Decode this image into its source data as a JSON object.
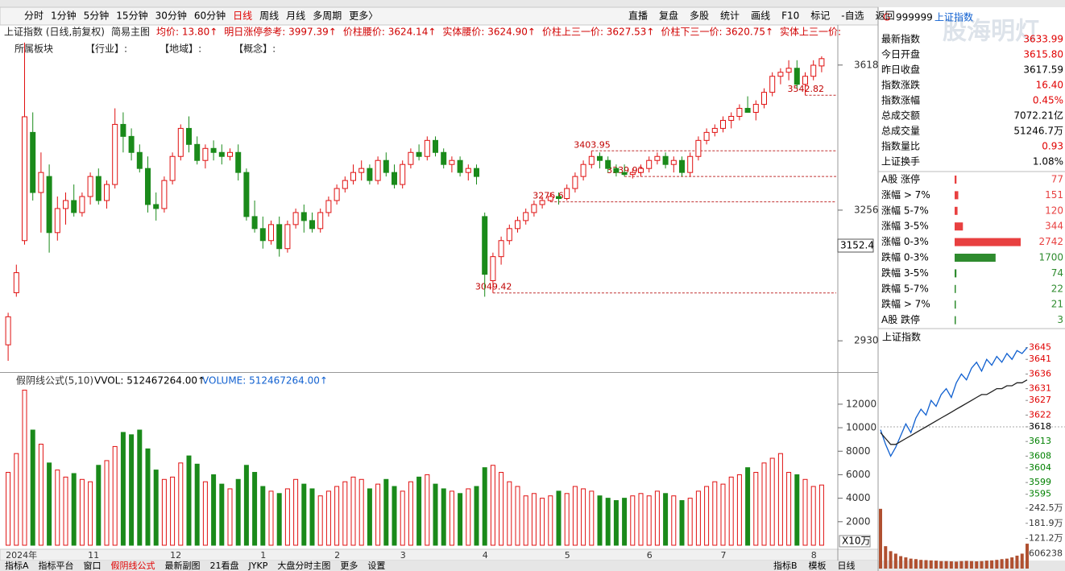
{
  "toolbar": {
    "periods": [
      "分时",
      "1分钟",
      "5分钟",
      "15分钟",
      "30分钟",
      "60分钟",
      "日线",
      "周线",
      "月线",
      "多周期",
      "更多〉"
    ],
    "active": "日线",
    "tools": [
      "直播",
      "复盘",
      "多股",
      "统计",
      "画线",
      "F10",
      "标记",
      "-自选",
      "返回"
    ]
  },
  "info_line": [
    "上证指数 (日线,前复权)",
    "简易主图",
    "均价: 13.80↑",
    "明日涨停参考: 3997.39↑",
    "价柱腰价: 3624.14↑",
    "实体腰价: 3624.90↑",
    "价柱上三一价: 3627.53↑",
    "价柱下三一价: 3620.75↑",
    "实体上三一价:"
  ],
  "sector_line": [
    "所属板块",
    "【行业】:",
    "【地域】:",
    "【概念】:"
  ],
  "main_chart": {
    "type": "candlestick",
    "up_color": "#e01010",
    "down_color": "#1a8a1a",
    "categories": [
      "2024年",
      null,
      null,
      null,
      null,
      null,
      null,
      null,
      null,
      null,
      "11",
      null,
      null,
      null,
      null,
      null,
      null,
      null,
      null,
      null,
      "12",
      null,
      null,
      null,
      null,
      null,
      null,
      null,
      null,
      null,
      null,
      "1",
      null,
      null,
      null,
      null,
      null,
      null,
      null,
      null,
      "2",
      null,
      null,
      null,
      null,
      null,
      null,
      null,
      "3",
      null,
      null,
      null,
      null,
      null,
      null,
      null,
      null,
      null,
      "4",
      null,
      null,
      null,
      null,
      null,
      null,
      null,
      null,
      null,
      "5",
      null,
      null,
      null,
      null,
      null,
      null,
      null,
      null,
      null,
      "6",
      null,
      null,
      null,
      null,
      null,
      null,
      null,
      null,
      "7",
      null,
      null,
      null,
      null,
      null,
      null,
      null,
      null,
      null,
      null,
      "8",
      null
    ],
    "open": [
      2920,
      3050,
      3180,
      3450,
      3300,
      3340,
      3200,
      3260,
      3280,
      3250,
      3290,
      3340,
      3280,
      3320,
      3470,
      3440,
      3400,
      3360,
      3270,
      3260,
      3330,
      3390,
      3460,
      3420,
      3380,
      3410,
      3400,
      3390,
      3400,
      3350,
      3240,
      3210,
      3180,
      3220,
      3160,
      3220,
      3250,
      3230,
      3210,
      3250,
      3280,
      3310,
      3330,
      3350,
      3360,
      3330,
      3380,
      3350,
      3320,
      3370,
      3400,
      3390,
      3430,
      3400,
      3370,
      3380,
      3350,
      3360,
      3240,
      3080,
      3140,
      3180,
      3210,
      3230,
      3250,
      3270,
      3280,
      3290,
      3285,
      3310,
      3340,
      3370,
      3390,
      3380,
      3360,
      3350,
      3345,
      3350,
      3360,
      3380,
      3390,
      3370,
      3380,
      3350,
      3390,
      3430,
      3450,
      3460,
      3480,
      3490,
      3510,
      3500,
      3520,
      3550,
      3590,
      3600,
      3610,
      3570,
      3590,
      3615.8
    ],
    "high": [
      3000,
      3120,
      3674,
      3500,
      3400,
      3370,
      3290,
      3300,
      3320,
      3300,
      3350,
      3360,
      3330,
      3510,
      3500,
      3460,
      3420,
      3390,
      3300,
      3340,
      3400,
      3470,
      3490,
      3440,
      3420,
      3430,
      3420,
      3410,
      3420,
      3360,
      3280,
      3240,
      3230,
      3240,
      3230,
      3260,
      3270,
      3250,
      3260,
      3290,
      3320,
      3340,
      3370,
      3380,
      3370,
      3390,
      3400,
      3370,
      3380,
      3410,
      3420,
      3440,
      3440,
      3410,
      3390,
      3390,
      3370,
      3370,
      3250,
      3150,
      3190,
      3220,
      3240,
      3260,
      3280,
      3290,
      3300,
      3300,
      3320,
      3350,
      3380,
      3403.95,
      3400,
      3390,
      3370,
      3370,
      3360,
      3370,
      3390,
      3400,
      3400,
      3390,
      3390,
      3400,
      3440,
      3460,
      3470,
      3490,
      3500,
      3520,
      3540,
      3530,
      3560,
      3600,
      3610,
      3630,
      3630,
      3600,
      3630,
      3640
    ],
    "low": [
      2880,
      3040,
      3170,
      3280,
      3200,
      3150,
      3180,
      3220,
      3240,
      3240,
      3270,
      3270,
      3260,
      3310,
      3400,
      3380,
      3350,
      3250,
      3230,
      3250,
      3320,
      3380,
      3400,
      3370,
      3360,
      3380,
      3370,
      3380,
      3330,
      3230,
      3200,
      3160,
      3170,
      3140,
      3150,
      3210,
      3200,
      3200,
      3200,
      3240,
      3270,
      3300,
      3320,
      3330,
      3320,
      3320,
      3340,
      3310,
      3310,
      3360,
      3380,
      3380,
      3390,
      3360,
      3350,
      3340,
      3330,
      3320,
      3040,
      3049.42,
      3120,
      3170,
      3200,
      3220,
      3240,
      3260,
      3276.65,
      3270,
      3280,
      3300,
      3330,
      3360,
      3360,
      3350,
      3340,
      3339.93,
      3335,
      3340,
      3350,
      3370,
      3360,
      3350,
      3340,
      3340,
      3380,
      3420,
      3440,
      3450,
      3460,
      3480,
      3500,
      3480,
      3510,
      3540,
      3570,
      3580,
      3560,
      3542.82,
      3580,
      3600
    ],
    "close": [
      2990,
      3100,
      3489,
      3300,
      3350,
      3200,
      3260,
      3280,
      3250,
      3290,
      3340,
      3280,
      3320,
      3470,
      3440,
      3400,
      3360,
      3270,
      3260,
      3330,
      3390,
      3460,
      3420,
      3380,
      3410,
      3400,
      3390,
      3400,
      3350,
      3240,
      3210,
      3180,
      3220,
      3160,
      3220,
      3250,
      3230,
      3210,
      3250,
      3280,
      3310,
      3330,
      3350,
      3360,
      3330,
      3380,
      3350,
      3320,
      3370,
      3400,
      3390,
      3430,
      3400,
      3370,
      3380,
      3350,
      3360,
      3340,
      3096,
      3140,
      3180,
      3210,
      3230,
      3250,
      3270,
      3280,
      3290,
      3285,
      3310,
      3340,
      3370,
      3390,
      3380,
      3360,
      3350,
      3345,
      3350,
      3360,
      3380,
      3390,
      3370,
      3380,
      3350,
      3390,
      3430,
      3450,
      3460,
      3480,
      3490,
      3510,
      3500,
      3520,
      3550,
      3590,
      3600,
      3610,
      3570,
      3590,
      3617.59,
      3633.99
    ],
    "ylim": [
      2856,
      3712
    ],
    "yticks": [
      2930,
      3256,
      3618
    ],
    "annotations": [
      3049.42,
      3276.65,
      3403.95,
      3339.93,
      3542.82
    ],
    "cursor_price": "3152.4"
  },
  "volume_chart": {
    "type": "bar",
    "title": "假阴线公式(5,10)",
    "vvol": "VVOL: 512467264.00↑",
    "volume": "VOLUME: 512467264.00↑",
    "unit": "X10万",
    "values": [
      6200,
      7800,
      13200,
      9800,
      8600,
      7000,
      6400,
      5800,
      6100,
      5600,
      5400,
      6800,
      7200,
      8400,
      9600,
      9400,
      9800,
      8200,
      6400,
      5600,
      5800,
      7000,
      7600,
      6900,
      5400,
      6000,
      5200,
      4800,
      5600,
      6800,
      6200,
      5000,
      4600,
      4400,
      4800,
      5600,
      5200,
      4800,
      4200,
      4600,
      5000,
      5400,
      5800,
      5600,
      4800,
      5200,
      5600,
      5000,
      4600,
      5400,
      5800,
      6000,
      5200,
      4800,
      4600,
      4400,
      4800,
      5000,
      6600,
      6800,
      6200,
      5400,
      5000,
      4200,
      4400,
      4000,
      4200,
      4600,
      4400,
      5000,
      4800,
      4600,
      4200,
      4000,
      3800,
      4000,
      4200,
      4400,
      4200,
      4600,
      4400,
      4200,
      3800,
      4000,
      4600,
      5000,
      5400,
      5200,
      5800,
      6000,
      6600,
      6200,
      7000,
      7400,
      7800,
      6200,
      6000,
      5600,
      5000,
      5124.67
    ],
    "ylim": [
      0,
      13500
    ],
    "yticks": [
      2000,
      4000,
      6000,
      8000,
      10000,
      12000
    ]
  },
  "quote_panel": {
    "flag": "G",
    "code": "999999",
    "name": "上证指数",
    "watermark": "股海明灯",
    "rows": [
      {
        "label": "最新指数",
        "value": "3633.99",
        "color": "#e00000"
      },
      {
        "label": "今日开盘",
        "value": "3615.80",
        "color": "#e00000"
      },
      {
        "label": "昨日收盘",
        "value": "3617.59",
        "color": "#000000"
      },
      {
        "label": "指数涨跌",
        "value": "16.40",
        "color": "#e00000"
      },
      {
        "label": "指数涨幅",
        "value": "0.45%",
        "color": "#e00000"
      },
      {
        "label": "总成交额",
        "value": "7072.21亿",
        "color": "#000000"
      },
      {
        "label": "总成交量",
        "value": "51246.7万",
        "color": "#000000"
      },
      {
        "label": "指数量比",
        "value": "0.93",
        "color": "#e00000"
      },
      {
        "label": "上证换手",
        "value": "1.08%",
        "color": "#000000"
      }
    ],
    "breadth": [
      {
        "label": "A股 涨停",
        "count": 77,
        "color": "#e84040"
      },
      {
        "label": "涨幅 > 7%",
        "count": 151,
        "color": "#e84040"
      },
      {
        "label": "涨幅 5-7%",
        "count": 120,
        "color": "#e84040"
      },
      {
        "label": "涨幅 3-5%",
        "count": 344,
        "color": "#e84040"
      },
      {
        "label": "涨幅 0-3%",
        "count": 2742,
        "color": "#e84040"
      },
      {
        "label": "跌幅 0-3%",
        "count": 1700,
        "color": "#2e8b2e"
      },
      {
        "label": "跌幅 3-5%",
        "count": 74,
        "color": "#2e8b2e"
      },
      {
        "label": "跌幅 5-7%",
        "count": 22,
        "color": "#2e8b2e"
      },
      {
        "label": "跌幅 > 7%",
        "count": 21,
        "color": "#2e8b2e"
      },
      {
        "label": "A股 跌停",
        "count": 3,
        "color": "#2e8b2e"
      }
    ]
  },
  "intraday": {
    "title": "上证指数",
    "price_color": "#1060d0",
    "avg_color": "#202020",
    "price": [
      3617,
      3612,
      3608,
      3611,
      3615,
      3619,
      3616,
      3621,
      3624,
      3622,
      3627,
      3625,
      3629,
      3631,
      3628,
      3633,
      3636,
      3634,
      3638,
      3640,
      3637,
      3641,
      3639,
      3642,
      3640,
      3643,
      3641,
      3644,
      3643,
      3645
    ],
    "avg": [
      3616,
      3614,
      3612,
      3612,
      3613,
      3614,
      3615,
      3616,
      3617,
      3618,
      3619,
      3620,
      3621,
      3622,
      3623,
      3624,
      3625,
      3626,
      3627,
      3628,
      3629,
      3629,
      3630,
      3631,
      3631,
      3632,
      3632,
      3633,
      3633,
      3634
    ],
    "volume": [
      2400000,
      900000,
      700000,
      600000,
      500000,
      450000,
      400000,
      380000,
      350000,
      340000,
      330000,
      320000,
      300000,
      300000,
      290000,
      280000,
      300000,
      310000,
      300000,
      290000,
      300000,
      320000,
      330000,
      350000,
      380000,
      400000,
      450000,
      520000,
      600000,
      1000000
    ],
    "ylim": [
      3593,
      3646
    ],
    "yticks": [
      3645,
      3641,
      3636,
      3631,
      3627,
      3622,
      3618,
      3613,
      3608,
      3604,
      3599,
      3595
    ],
    "base": 3618,
    "vlim": [
      0,
      2717000
    ],
    "vticks": [
      {
        "value": 2425000,
        "label": "242.5万"
      },
      {
        "value": 1819000,
        "label": "181.9万"
      },
      {
        "value": 1212000,
        "label": "121.2万"
      },
      606238
    ]
  },
  "bottom_tabs": [
    "指标A",
    "指标平台",
    "窗口",
    "假阴线公式",
    "最新副图",
    "21看盘",
    "JYKP",
    "大盘分时主图",
    "更多",
    "设置"
  ],
  "bottom_right_tabs": [
    "指标B",
    "模板",
    "日线"
  ]
}
